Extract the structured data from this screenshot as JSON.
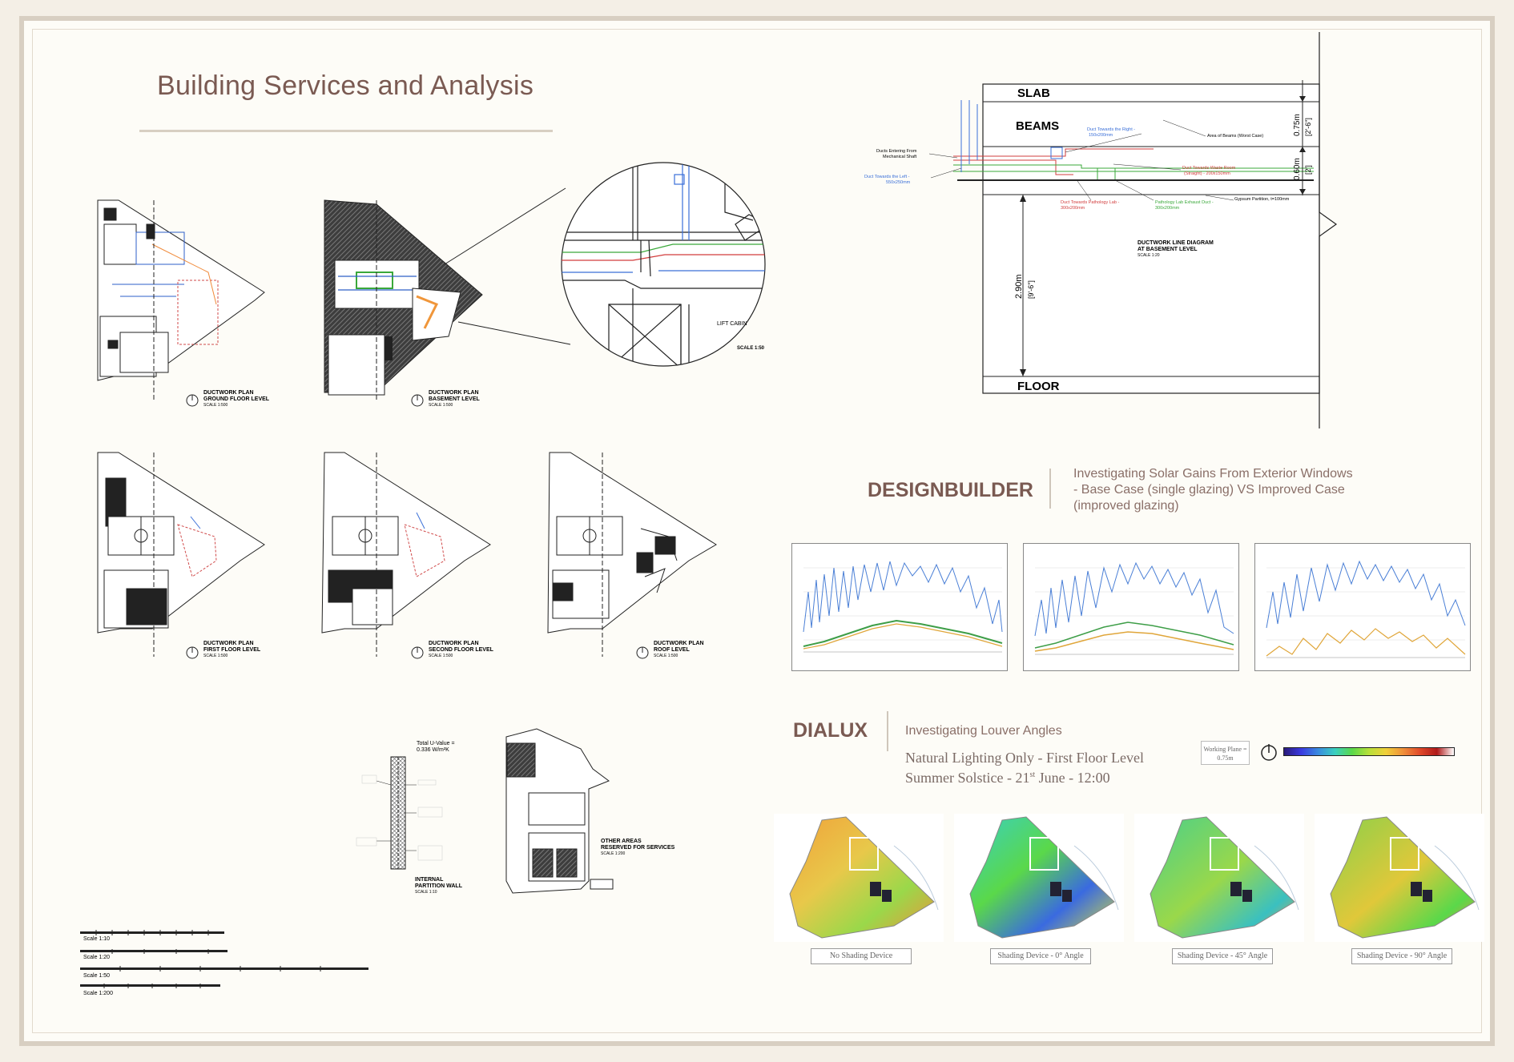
{
  "page": {
    "title": "Building Services and Analysis"
  },
  "plans": [
    {
      "name": "DUCTWORK PLAN",
      "level": "GROUND FLOOR LEVEL",
      "scale": "SCALE 1:500"
    },
    {
      "name": "DUCTWORK PLAN",
      "level": "BASEMENT LEVEL",
      "scale": "SCALE 1:500"
    },
    {
      "name": "DUCTWORK PLAN",
      "level": "FIRST FLOOR LEVEL",
      "scale": "SCALE 1:500"
    },
    {
      "name": "DUCTWORK PLAN",
      "level": "SECOND FLOOR LEVEL",
      "scale": "SCALE 1:500"
    },
    {
      "name": "DUCTWORK PLAN",
      "level": "ROOF LEVEL",
      "scale": "SCALE 1:500"
    }
  ],
  "detail": {
    "lift_label": "LIFT CABIN",
    "scale": "SCALE 1:50"
  },
  "section": {
    "slab": "SLAB",
    "beams": "BEAMS",
    "floor": "FLOOR",
    "dim_top": "0.75m",
    "dim_top_imp": "[2'-6\"]",
    "dim_mid": "0.60m",
    "dim_mid_imp": "[2']",
    "dim_main": "2.90m",
    "dim_main_imp": "[9'-6\"]",
    "title_1": "DUCTWORK LINE DIAGRAM",
    "title_2": "AT BASEMENT LEVEL",
    "scale": "SCALE 1:20",
    "notes": {
      "ducts_entering_1": "Ducts Entering From",
      "ducts_entering_2": "Mechanical Shaft",
      "duct_left_1": "Duct Towards the Left -",
      "duct_left_2": "550x250mm",
      "duct_right_1": "Duct Towards the Right -",
      "duct_right_2": "150x200mm",
      "beams_area": "Area of Beams (Worst Case)",
      "waste_1": "Duct Towards Waste Room",
      "waste_2": "(Straight) - 200x150mm",
      "pathology_1": "Duct Towards Pathology Lab -",
      "pathology_2": "300x200mm",
      "exhaust_1": "Pathology Lab Exhaust Duct -",
      "exhaust_2": "300x200mm",
      "gypsum": "Gypsum Partition, t=100mm"
    }
  },
  "designbuilder": {
    "title": "DESIGNBUILDER",
    "desc_1": "Investigating Solar Gains From Exterior Windows",
    "desc_2": "- Base Case (single glazing) VS Improved Case",
    "desc_3": "(improved glazing)"
  },
  "dialux": {
    "title": "DIALUX",
    "desc": "Investigating Louver Angles",
    "sub_1": "Natural Lighting Only - First Floor Level",
    "sub_2a": "Summer Solstice - 21",
    "sub_2sup": "st",
    "sub_2b": " June - 12:00",
    "working_1": "Working Plane =",
    "working_2": "0.75m",
    "captions": [
      "No Shading Device",
      "Shading Device - 0° Angle",
      "Shading Device - 45° Angle",
      "Shading Device - 90° Angle"
    ]
  },
  "wall": {
    "uvalue_1": "Total U-Value =",
    "uvalue_2": "0.336 W/m²K",
    "label_1": "INTERNAL",
    "label_2": "PARTITION WALL",
    "scale": "SCALE 1:10"
  },
  "other_areas": {
    "l1": "OTHER AREAS",
    "l2": "RESERVED FOR SERVICES",
    "scale": "SCALE 1:200"
  },
  "scale_bars": [
    "Scale 1:10",
    "Scale 1:20",
    "Scale 1:50",
    "Scale 1:200"
  ],
  "colors": {
    "accent": "#7a5a52",
    "duct_blue": "#3a6fd8",
    "duct_red": "#d23c3c",
    "duct_green": "#3aa83a",
    "series_blue": "#4a7fd6",
    "series_green": "#3e9e48",
    "series_orange": "#e0a63a"
  }
}
